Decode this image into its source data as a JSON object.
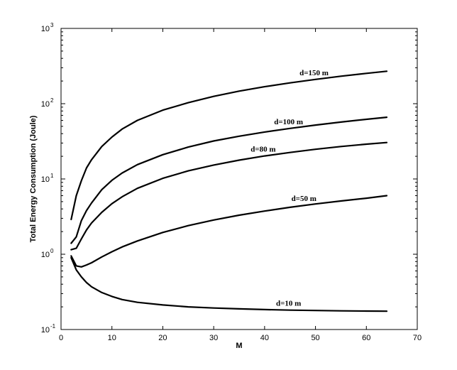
{
  "chart_data": {
    "type": "line",
    "xlabel": "M",
    "ylabel": "Total Energy Consumption (Joule)",
    "xlim": [
      0,
      70
    ],
    "ylim": [
      0.1,
      1000
    ],
    "yscale": "log",
    "grid": false,
    "x_ticks": [
      "0",
      "10",
      "20",
      "30",
      "40",
      "50",
      "60",
      "70"
    ],
    "y_ticks": [
      {
        "base": "10",
        "exp": "-1",
        "value": 0.1
      },
      {
        "base": "10",
        "exp": "0",
        "value": 1
      },
      {
        "base": "10",
        "exp": "1",
        "value": 10
      },
      {
        "base": "10",
        "exp": "2",
        "value": 100
      },
      {
        "base": "10",
        "exp": "3",
        "value": 1000
      }
    ],
    "series": [
      {
        "name": "d=150 m",
        "points": [
          [
            2,
            2.9
          ],
          [
            3,
            6.0
          ],
          [
            4,
            9.5
          ],
          [
            5,
            14
          ],
          [
            6,
            18
          ],
          [
            8,
            27
          ],
          [
            10,
            36
          ],
          [
            12,
            46
          ],
          [
            15,
            60
          ],
          [
            20,
            82
          ],
          [
            25,
            103
          ],
          [
            30,
            125
          ],
          [
            35,
            147
          ],
          [
            40,
            168
          ],
          [
            45,
            189
          ],
          [
            50,
            210
          ],
          [
            55,
            232
          ],
          [
            60,
            253
          ],
          [
            64,
            270
          ]
        ]
      },
      {
        "name": "d=100 m",
        "points": [
          [
            2,
            1.4
          ],
          [
            3,
            1.7
          ],
          [
            4,
            2.8
          ],
          [
            5,
            3.8
          ],
          [
            6,
            4.8
          ],
          [
            8,
            7.2
          ],
          [
            10,
            9.6
          ],
          [
            12,
            12
          ],
          [
            15,
            15.5
          ],
          [
            20,
            21
          ],
          [
            25,
            26.5
          ],
          [
            30,
            32
          ],
          [
            35,
            37
          ],
          [
            40,
            42
          ],
          [
            45,
            47
          ],
          [
            50,
            52
          ],
          [
            55,
            57
          ],
          [
            60,
            62
          ],
          [
            64,
            66
          ]
        ]
      },
      {
        "name": "d=80 m",
        "points": [
          [
            2,
            1.15
          ],
          [
            3,
            1.2
          ],
          [
            4,
            1.6
          ],
          [
            5,
            2.1
          ],
          [
            6,
            2.6
          ],
          [
            8,
            3.6
          ],
          [
            10,
            4.7
          ],
          [
            12,
            5.8
          ],
          [
            15,
            7.5
          ],
          [
            20,
            10.2
          ],
          [
            25,
            12.8
          ],
          [
            30,
            15.3
          ],
          [
            35,
            17.8
          ],
          [
            40,
            20.2
          ],
          [
            45,
            22.5
          ],
          [
            50,
            24.8
          ],
          [
            55,
            27
          ],
          [
            60,
            29
          ],
          [
            64,
            30.5
          ]
        ]
      },
      {
        "name": "d=50 m",
        "points": [
          [
            2,
            0.95
          ],
          [
            3,
            0.7
          ],
          [
            4,
            0.68
          ],
          [
            5,
            0.72
          ],
          [
            6,
            0.77
          ],
          [
            8,
            0.92
          ],
          [
            10,
            1.08
          ],
          [
            12,
            1.25
          ],
          [
            15,
            1.5
          ],
          [
            20,
            1.95
          ],
          [
            25,
            2.4
          ],
          [
            30,
            2.85
          ],
          [
            35,
            3.3
          ],
          [
            40,
            3.75
          ],
          [
            45,
            4.2
          ],
          [
            50,
            4.65
          ],
          [
            55,
            5.1
          ],
          [
            60,
            5.55
          ],
          [
            64,
            6.0
          ]
        ]
      },
      {
        "name": "d=10 m",
        "points": [
          [
            2,
            0.9
          ],
          [
            3,
            0.62
          ],
          [
            4,
            0.5
          ],
          [
            5,
            0.42
          ],
          [
            6,
            0.37
          ],
          [
            8,
            0.31
          ],
          [
            10,
            0.275
          ],
          [
            12,
            0.25
          ],
          [
            15,
            0.23
          ],
          [
            20,
            0.212
          ],
          [
            25,
            0.2
          ],
          [
            30,
            0.193
          ],
          [
            35,
            0.188
          ],
          [
            40,
            0.184
          ],
          [
            45,
            0.181
          ],
          [
            50,
            0.179
          ],
          [
            55,
            0.177
          ],
          [
            60,
            0.176
          ],
          [
            64,
            0.175
          ]
        ]
      }
    ]
  }
}
